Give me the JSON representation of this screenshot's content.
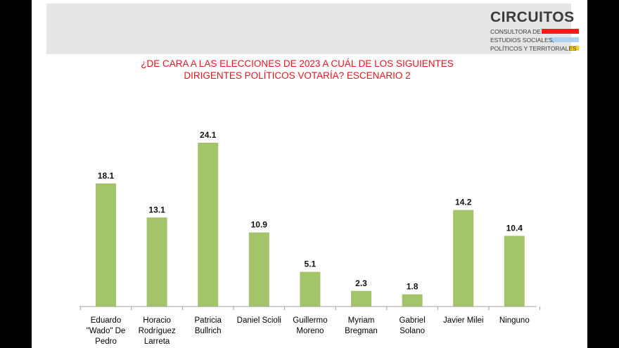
{
  "logo": {
    "name": "CIRCUITOS",
    "line1": "CONSULTORA DE",
    "line2": "ESTUDIOS SOCIALES,",
    "line3": "POLÍTICOS Y TERRITORIALES",
    "colors": [
      "#ff1a1a",
      "#aed2f2",
      "#ffd21f"
    ]
  },
  "colors": {
    "bar": "#a4c46a",
    "title": "#e8141c",
    "axis": "#a0a0a0"
  },
  "chart_data": {
    "type": "bar",
    "title_line1": "¿DE CARA A LAS ELECCIONES DE 2023 A CUÁL DE LOS SIGUIENTES",
    "title_line2": "DIRIGENTES POLÍTICOS VOTARÍA? ESCENARIO 2",
    "categories": [
      [
        "Eduardo",
        "\"Wado\" De",
        "Pedro"
      ],
      [
        "Horacio",
        "Rodríguez",
        "Larreta"
      ],
      [
        "Patricia",
        "Bullrich"
      ],
      [
        "Daniel Scioli"
      ],
      [
        "Guillermo",
        "Moreno"
      ],
      [
        "Myriam",
        "Bregman"
      ],
      [
        "Gabriel",
        "Solano"
      ],
      [
        "Javier Milei"
      ],
      [
        "Ninguno"
      ]
    ],
    "values": [
      18.1,
      13.1,
      24.1,
      10.9,
      5.1,
      2.3,
      1.8,
      14.2,
      10.4
    ],
    "value_labels": [
      "18.1",
      "13.1",
      "24.1",
      "10.9",
      "5.1",
      "2.3",
      "1.8",
      "14.2",
      "10.4"
    ],
    "ylim": [
      0,
      24.1
    ],
    "grid": false,
    "legend": "none"
  }
}
